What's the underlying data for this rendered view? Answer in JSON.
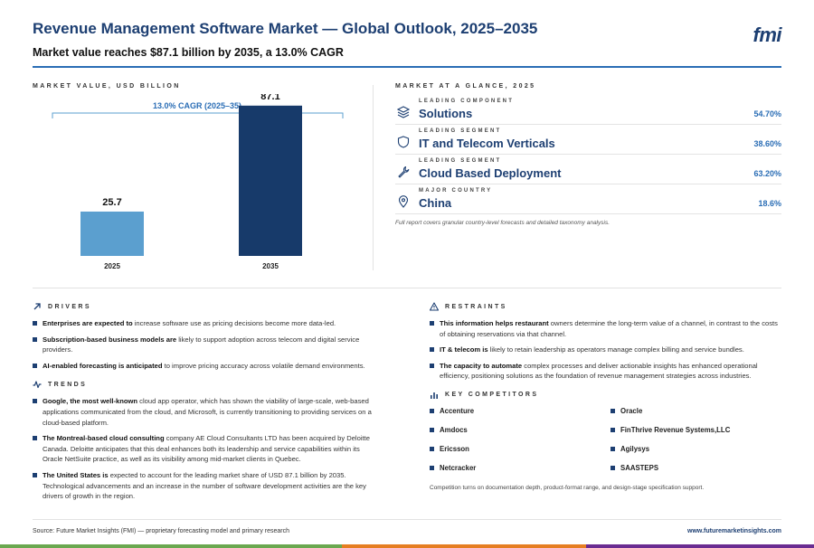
{
  "header": {
    "title": "Revenue Management Software Market — Global Outlook, 2025–2035",
    "subtitle": "Market value reaches $87.1 billion by 2035, a 13.0% CAGR",
    "logo": "fmi"
  },
  "chart_section_label": "MARKET VALUE, USD BILLION",
  "chart_data": {
    "type": "bar",
    "categories": [
      "2025",
      "2035"
    ],
    "values": [
      25.7,
      87.1
    ],
    "ylim": [
      0,
      100
    ],
    "cagr_label": "13.0% CAGR (2025–35)",
    "colors": [
      "#5b9fcf",
      "#173a6a"
    ],
    "grid": false
  },
  "glance": {
    "label": "MARKET AT A GLANCE, 2025",
    "rows": [
      {
        "kicker": "LEADING COMPONENT",
        "name": "Solutions",
        "pct": "54.70%",
        "icon": "layers-icon"
      },
      {
        "kicker": "LEADING SEGMENT",
        "name": "IT and Telecom Verticals",
        "pct": "38.60%",
        "icon": "shield-icon"
      },
      {
        "kicker": "LEADING SEGMENT",
        "name": "Cloud Based Deployment",
        "pct": "63.20%",
        "icon": "wrench-icon"
      },
      {
        "kicker": "MAJOR COUNTRY",
        "name": "China",
        "pct": "18.6%",
        "icon": "location-pin-icon"
      }
    ],
    "note": "Full report covers granular country-level forecasts and detailed taxonomy analysis."
  },
  "drivers": {
    "label": "DRIVERS",
    "items": [
      {
        "bold": "Enterprises are expected to",
        "text": " increase software use as pricing decisions become more data-led."
      },
      {
        "bold": "Subscription-based business models are",
        "text": " likely to support adoption across telecom and digital service providers."
      },
      {
        "bold": "AI-enabled forecasting is anticipated",
        "text": " to improve pricing accuracy across volatile demand environments."
      }
    ]
  },
  "trends": {
    "label": "TRENDS",
    "items": [
      {
        "bold": "Google, the most well-known",
        "text": " cloud app operator, which has shown the viability of large-scale, web-based applications communicated from the cloud, and Microsoft, is currently transitioning to providing services on a cloud-based platform."
      },
      {
        "bold": "The Montreal-based cloud consulting",
        "text": " company AE Cloud Consultants LTD has been acquired by Deloitte Canada. Deloitte anticipates that this deal enhances both its leadership and service capabilities within its Oracle NetSuite practice, as well as its visibility among mid-market clients in Quebec."
      },
      {
        "bold": "The United States is",
        "text": " expected to account for the leading market share of USD 87.1 billion by 2035. Technological advancements and an increase in the number of software development activities are the key drivers of growth in the region."
      }
    ]
  },
  "restraints": {
    "label": "RESTRAINTS",
    "items": [
      {
        "bold": "This information helps restaurant",
        "text": " owners determine the long-term value of a channel, in contrast to the costs of obtaining reservations via that channel."
      },
      {
        "bold": "IT & telecom is",
        "text": " likely to retain leadership as operators manage complex billing and service bundles."
      },
      {
        "bold": "The capacity to automate",
        "text": " complex processes and deliver actionable insights has enhanced operational efficiency, positioning solutions as the foundation of revenue management strategies across industries."
      }
    ]
  },
  "competitors": {
    "label": "KEY COMPETITORS",
    "items": [
      "Accenture",
      "Oracle",
      "Amdocs",
      "FinThrive Revenue Systems,LLC",
      "Ericsson",
      "Agilysys",
      "Netcracker",
      "SAASTEPS"
    ],
    "note": "Competition turns on documentation depth, product-format range, and design-stage specification support."
  },
  "footer": {
    "source": "Source: Future Market Insights (FMI) — proprietary forecasting model and primary research",
    "url": "www.futuremarketinsights.com"
  }
}
